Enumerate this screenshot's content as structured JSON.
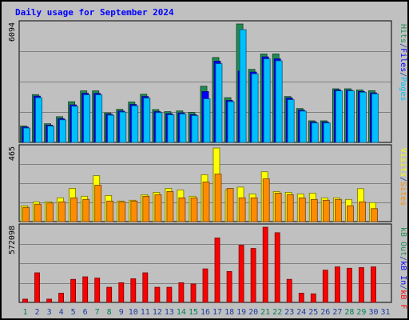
{
  "title": "Daily usage for September 2024",
  "colors": {
    "title": "#0000ff",
    "panel_bg": "#c0c0c0",
    "gridline": "#808080",
    "hits": "#228b52",
    "files": "#0000ff",
    "pages": "#00bfff",
    "visits": "#ffff00",
    "sites": "#ff8c00",
    "kb_in": "#0000ff",
    "kb_out": "#228b52",
    "kb_f": "#ff0000",
    "day_normal": "#1a3ea0",
    "day_weekend": "#00805a"
  },
  "chart_data": [
    {
      "type": "bar",
      "categories": [
        "1",
        "2",
        "3",
        "4",
        "5",
        "6",
        "7",
        "8",
        "9",
        "10",
        "11",
        "12",
        "13",
        "14",
        "15",
        "16",
        "17",
        "18",
        "19",
        "20",
        "21",
        "22",
        "23",
        "24",
        "25",
        "26",
        "27",
        "28",
        "29",
        "30",
        "31"
      ],
      "weekend_days": [
        "1",
        "7",
        "8",
        "14",
        "15",
        "21",
        "22",
        "28",
        "29"
      ],
      "ymax_label": "6094",
      "ylim": [
        0,
        6094
      ],
      "legend": [
        {
          "label": "Pages",
          "color_key": "pages"
        },
        {
          "label": "/",
          "color_key": "day_normal"
        },
        {
          "label": "Files",
          "color_key": "files"
        },
        {
          "label": "/",
          "color_key": "day_normal"
        },
        {
          "label": "Hits",
          "color_key": "hits"
        }
      ],
      "series": [
        {
          "name": "Hits",
          "color_key": "hits",
          "values": [
            840,
            2460,
            960,
            1320,
            2090,
            2650,
            2650,
            1520,
            1700,
            2080,
            2480,
            1690,
            1580,
            1620,
            1540,
            2890,
            4370,
            2300,
            6094,
            3760,
            4550,
            4550,
            2360,
            1740,
            1110,
            1110,
            2760,
            2760,
            2700,
            2660,
            0
          ]
        },
        {
          "name": "Files",
          "color_key": "files",
          "values": [
            790,
            2380,
            890,
            1220,
            1930,
            2530,
            2520,
            1450,
            1610,
            1950,
            2360,
            1580,
            1480,
            1520,
            1430,
            2620,
            4180,
            2160,
            3670,
            3620,
            4400,
            4300,
            2280,
            1660,
            1050,
            1050,
            2700,
            2680,
            2620,
            2550,
            0
          ]
        },
        {
          "name": "Pages",
          "color_key": "pages",
          "values": [
            740,
            2300,
            840,
            1160,
            1860,
            2450,
            2450,
            1400,
            1560,
            1880,
            2280,
            1530,
            1420,
            1460,
            1380,
            2240,
            4050,
            2100,
            5800,
            3530,
            4300,
            4200,
            2200,
            1610,
            1000,
            1000,
            2650,
            2650,
            2580,
            2500,
            0
          ]
        }
      ]
    },
    {
      "type": "bar",
      "categories": [
        "1",
        "2",
        "3",
        "4",
        "5",
        "6",
        "7",
        "8",
        "9",
        "10",
        "11",
        "12",
        "13",
        "14",
        "15",
        "16",
        "17",
        "18",
        "19",
        "20",
        "21",
        "22",
        "23",
        "24",
        "25",
        "26",
        "27",
        "28",
        "29",
        "30",
        "31"
      ],
      "ymax_label": "465",
      "ylim": [
        0,
        465
      ],
      "legend": [
        {
          "label": "Sites",
          "color_key": "sites"
        },
        {
          "label": "/",
          "color_key": "day_normal"
        },
        {
          "label": "Visits",
          "color_key": "visits"
        }
      ],
      "series": [
        {
          "name": "Visits",
          "color_key": "visits",
          "values": [
            100,
            125,
            125,
            150,
            210,
            160,
            290,
            165,
            130,
            135,
            170,
            185,
            210,
            200,
            160,
            296,
            465,
            200,
            218,
            175,
            315,
            190,
            185,
            175,
            180,
            150,
            150,
            140,
            208,
            120,
            0
          ]
        },
        {
          "name": "Sites",
          "color_key": "sites",
          "values": [
            90,
            110,
            118,
            125,
            150,
            140,
            230,
            130,
            125,
            130,
            160,
            170,
            190,
            150,
            150,
            250,
            300,
            210,
            150,
            150,
            270,
            180,
            170,
            150,
            140,
            135,
            140,
            100,
            125,
            82,
            0
          ]
        }
      ]
    },
    {
      "type": "bar",
      "categories": [
        "1",
        "2",
        "3",
        "4",
        "5",
        "6",
        "7",
        "8",
        "9",
        "10",
        "11",
        "12",
        "13",
        "14",
        "15",
        "16",
        "17",
        "18",
        "19",
        "20",
        "21",
        "22",
        "23",
        "24",
        "25",
        "26",
        "27",
        "28",
        "29",
        "30",
        "31"
      ],
      "ymax_label": "572098",
      "ylim": [
        0,
        572098
      ],
      "legend": [
        {
          "label": "kB F",
          "color_key": "kb_f"
        },
        {
          "label": "/",
          "color_key": "day_normal"
        },
        {
          "label": "kB In",
          "color_key": "kb_in"
        },
        {
          "label": "/",
          "color_key": "day_normal"
        },
        {
          "label": "kB Out",
          "color_key": "kb_out"
        }
      ],
      "series": [
        {
          "name": "kB F",
          "color_key": "kb_f",
          "values": [
            25000,
            225000,
            25000,
            70000,
            175000,
            195000,
            185000,
            115000,
            150000,
            180000,
            225000,
            115000,
            115000,
            150000,
            140000,
            255000,
            490000,
            235000,
            435000,
            410000,
            572098,
            530000,
            175000,
            70000,
            65000,
            245000,
            270000,
            260000,
            265000,
            270000,
            0
          ]
        }
      ]
    }
  ],
  "x_labels": [
    "1",
    "2",
    "3",
    "4",
    "5",
    "6",
    "7",
    "8",
    "9",
    "10",
    "11",
    "12",
    "13",
    "14",
    "15",
    "16",
    "17",
    "18",
    "19",
    "20",
    "21",
    "22",
    "23",
    "24",
    "25",
    "26",
    "27",
    "28",
    "29",
    "30",
    "31"
  ]
}
